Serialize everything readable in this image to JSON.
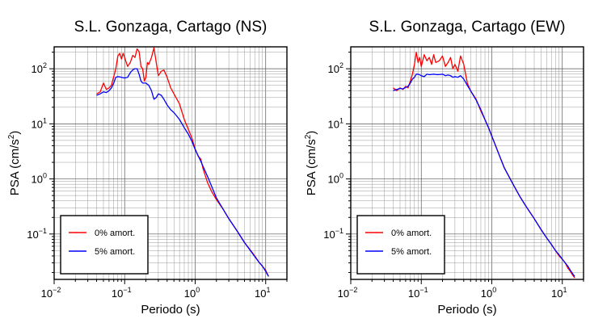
{
  "chart_data": [
    {
      "type": "line",
      "title": "S.L. Gonzaga, Cartago (NS)",
      "xlabel": "Periodo (s)",
      "ylabel_main": "PSA (cm/s",
      "ylabel_sup": "2",
      "ylabel_close": ")",
      "xscale": "log",
      "yscale": "log",
      "xlim": [
        0.01,
        20
      ],
      "ylim": [
        0.015,
        250
      ],
      "x_ticks": [
        {
          "base": "10",
          "exp": "−2"
        },
        {
          "base": "10",
          "exp": "−1"
        },
        {
          "base": "10",
          "exp": "0"
        },
        {
          "base": "10",
          "exp": "1"
        }
      ],
      "y_ticks": [
        {
          "base": "10",
          "exp": "−1"
        },
        {
          "base": "10",
          "exp": "0"
        },
        {
          "base": "10",
          "exp": "1"
        },
        {
          "base": "10",
          "exp": "2"
        }
      ],
      "grid": true,
      "legend_position": "bottom-left",
      "series": [
        {
          "name": "0% amort.",
          "color": "#ff0000",
          "points": [
            [
              0.04,
              35
            ],
            [
              0.045,
              38
            ],
            [
              0.05,
              55
            ],
            [
              0.055,
              42
            ],
            [
              0.06,
              45
            ],
            [
              0.065,
              50
            ],
            [
              0.07,
              72
            ],
            [
              0.075,
              100
            ],
            [
              0.08,
              170
            ],
            [
              0.085,
              190
            ],
            [
              0.09,
              150
            ],
            [
              0.095,
              190
            ],
            [
              0.1,
              160
            ],
            [
              0.11,
              110
            ],
            [
              0.12,
              130
            ],
            [
              0.13,
              175
            ],
            [
              0.14,
              160
            ],
            [
              0.15,
              230
            ],
            [
              0.16,
              205
            ],
            [
              0.17,
              110
            ],
            [
              0.18,
              100
            ],
            [
              0.19,
              60
            ],
            [
              0.2,
              70
            ],
            [
              0.21,
              130
            ],
            [
              0.22,
              120
            ],
            [
              0.24,
              160
            ],
            [
              0.26,
              240
            ],
            [
              0.28,
              130
            ],
            [
              0.3,
              75
            ],
            [
              0.33,
              90
            ],
            [
              0.36,
              95
            ],
            [
              0.4,
              70
            ],
            [
              0.45,
              45
            ],
            [
              0.5,
              35
            ],
            [
              0.6,
              23
            ],
            [
              0.7,
              12
            ],
            [
              0.8,
              8
            ],
            [
              0.9,
              5.5
            ],
            [
              1.0,
              3.5
            ],
            [
              1.1,
              2.6
            ],
            [
              1.2,
              2.3
            ],
            [
              1.3,
              1.5
            ],
            [
              1.5,
              0.85
            ],
            [
              1.7,
              0.6
            ],
            [
              2.0,
              0.42
            ],
            [
              2.5,
              0.28
            ],
            [
              3.0,
              0.19
            ],
            [
              4.0,
              0.11
            ],
            [
              5.0,
              0.07
            ],
            [
              6.0,
              0.052
            ],
            [
              7.0,
              0.04
            ],
            [
              8.0,
              0.031
            ],
            [
              9.0,
              0.026
            ],
            [
              10.0,
              0.022
            ],
            [
              11.0,
              0.017
            ]
          ]
        },
        {
          "name": "5% amort.",
          "color": "#0000ff",
          "points": [
            [
              0.04,
              33
            ],
            [
              0.045,
              35
            ],
            [
              0.05,
              38
            ],
            [
              0.055,
              37
            ],
            [
              0.06,
              40
            ],
            [
              0.065,
              45
            ],
            [
              0.07,
              55
            ],
            [
              0.075,
              70
            ],
            [
              0.08,
              72
            ],
            [
              0.09,
              70
            ],
            [
              0.1,
              68
            ],
            [
              0.11,
              70
            ],
            [
              0.12,
              85
            ],
            [
              0.13,
              95
            ],
            [
              0.14,
              100
            ],
            [
              0.15,
              100
            ],
            [
              0.16,
              80
            ],
            [
              0.17,
              60
            ],
            [
              0.18,
              55
            ],
            [
              0.2,
              55
            ],
            [
              0.22,
              50
            ],
            [
              0.24,
              40
            ],
            [
              0.26,
              28
            ],
            [
              0.28,
              30
            ],
            [
              0.3,
              35
            ],
            [
              0.33,
              33
            ],
            [
              0.36,
              28
            ],
            [
              0.4,
              22
            ],
            [
              0.45,
              18
            ],
            [
              0.5,
              16
            ],
            [
              0.6,
              12
            ],
            [
              0.7,
              8.5
            ],
            [
              0.8,
              6.5
            ],
            [
              0.9,
              4.8
            ],
            [
              1.0,
              3.4
            ],
            [
              1.2,
              2.1
            ],
            [
              1.5,
              1.1
            ],
            [
              1.7,
              0.75
            ],
            [
              2.0,
              0.45
            ],
            [
              2.5,
              0.28
            ],
            [
              3.0,
              0.19
            ],
            [
              4.0,
              0.11
            ],
            [
              5.0,
              0.07
            ],
            [
              6.0,
              0.051
            ],
            [
              7.0,
              0.039
            ],
            [
              8.0,
              0.031
            ],
            [
              9.0,
              0.026
            ],
            [
              10.0,
              0.021
            ],
            [
              11.0,
              0.017
            ]
          ]
        }
      ]
    },
    {
      "type": "line",
      "title": "S.L. Gonzaga, Cartago (EW)",
      "xlabel": "Periodo (s)",
      "ylabel_main": "PSA (cm/s",
      "ylabel_sup": "2",
      "ylabel_close": ")",
      "xscale": "log",
      "yscale": "log",
      "xlim": [
        0.01,
        20
      ],
      "ylim": [
        0.015,
        250
      ],
      "x_ticks": [
        {
          "base": "10",
          "exp": "−2"
        },
        {
          "base": "10",
          "exp": "−1"
        },
        {
          "base": "10",
          "exp": "0"
        },
        {
          "base": "10",
          "exp": "1"
        }
      ],
      "y_ticks": [
        {
          "base": "10",
          "exp": "−1"
        },
        {
          "base": "10",
          "exp": "0"
        },
        {
          "base": "10",
          "exp": "1"
        },
        {
          "base": "10",
          "exp": "2"
        }
      ],
      "grid": true,
      "legend_position": "bottom-left",
      "series": [
        {
          "name": "0% amort.",
          "color": "#ff0000",
          "points": [
            [
              0.04,
              45
            ],
            [
              0.045,
              40
            ],
            [
              0.05,
              45
            ],
            [
              0.055,
              42
            ],
            [
              0.06,
              48
            ],
            [
              0.065,
              45
            ],
            [
              0.07,
              60
            ],
            [
              0.075,
              80
            ],
            [
              0.08,
              120
            ],
            [
              0.085,
              200
            ],
            [
              0.09,
              130
            ],
            [
              0.095,
              160
            ],
            [
              0.1,
              110
            ],
            [
              0.11,
              180
            ],
            [
              0.12,
              140
            ],
            [
              0.13,
              160
            ],
            [
              0.14,
              120
            ],
            [
              0.15,
              180
            ],
            [
              0.16,
              130
            ],
            [
              0.18,
              140
            ],
            [
              0.2,
              170
            ],
            [
              0.22,
              110
            ],
            [
              0.24,
              130
            ],
            [
              0.26,
              160
            ],
            [
              0.28,
              100
            ],
            [
              0.3,
              120
            ],
            [
              0.33,
              90
            ],
            [
              0.36,
              170
            ],
            [
              0.4,
              120
            ],
            [
              0.45,
              55
            ],
            [
              0.5,
              40
            ],
            [
              0.6,
              28
            ],
            [
              0.7,
              17
            ],
            [
              0.8,
              12
            ],
            [
              0.9,
              8.5
            ],
            [
              1.0,
              6
            ],
            [
              1.2,
              3.3
            ],
            [
              1.5,
              1.6
            ],
            [
              2.0,
              0.8
            ],
            [
              2.5,
              0.48
            ],
            [
              3.0,
              0.33
            ],
            [
              4.0,
              0.19
            ],
            [
              5.0,
              0.12
            ],
            [
              6.0,
              0.085
            ],
            [
              7.0,
              0.065
            ],
            [
              8.0,
              0.05
            ],
            [
              9.0,
              0.04
            ],
            [
              10.0,
              0.035
            ],
            [
              11.0,
              0.03
            ],
            [
              12.0,
              0.024
            ],
            [
              13.0,
              0.021
            ],
            [
              14.0,
              0.018
            ],
            [
              15.0,
              0.016
            ]
          ]
        },
        {
          "name": "5% amort.",
          "color": "#0000ff",
          "points": [
            [
              0.04,
              40
            ],
            [
              0.045,
              42
            ],
            [
              0.05,
              44
            ],
            [
              0.055,
              43
            ],
            [
              0.06,
              46
            ],
            [
              0.065,
              48
            ],
            [
              0.07,
              55
            ],
            [
              0.075,
              65
            ],
            [
              0.08,
              70
            ],
            [
              0.085,
              80
            ],
            [
              0.09,
              80
            ],
            [
              0.1,
              75
            ],
            [
              0.11,
              72
            ],
            [
              0.12,
              80
            ],
            [
              0.13,
              78
            ],
            [
              0.15,
              80
            ],
            [
              0.17,
              78
            ],
            [
              0.2,
              80
            ],
            [
              0.22,
              75
            ],
            [
              0.24,
              77
            ],
            [
              0.26,
              75
            ],
            [
              0.28,
              70
            ],
            [
              0.3,
              72
            ],
            [
              0.33,
              70
            ],
            [
              0.36,
              75
            ],
            [
              0.4,
              65
            ],
            [
              0.45,
              50
            ],
            [
              0.5,
              40
            ],
            [
              0.6,
              27
            ],
            [
              0.7,
              18
            ],
            [
              0.8,
              12
            ],
            [
              0.9,
              8.5
            ],
            [
              1.0,
              6
            ],
            [
              1.2,
              3.3
            ],
            [
              1.5,
              1.6
            ],
            [
              2.0,
              0.8
            ],
            [
              2.5,
              0.48
            ],
            [
              3.0,
              0.33
            ],
            [
              4.0,
              0.19
            ],
            [
              5.0,
              0.12
            ],
            [
              6.0,
              0.085
            ],
            [
              7.0,
              0.065
            ],
            [
              8.0,
              0.05
            ],
            [
              9.0,
              0.042
            ],
            [
              10.0,
              0.035
            ],
            [
              11.0,
              0.03
            ],
            [
              12.0,
              0.026
            ],
            [
              13.0,
              0.022
            ],
            [
              14.0,
              0.019
            ],
            [
              15.0,
              0.017
            ]
          ]
        }
      ]
    }
  ]
}
